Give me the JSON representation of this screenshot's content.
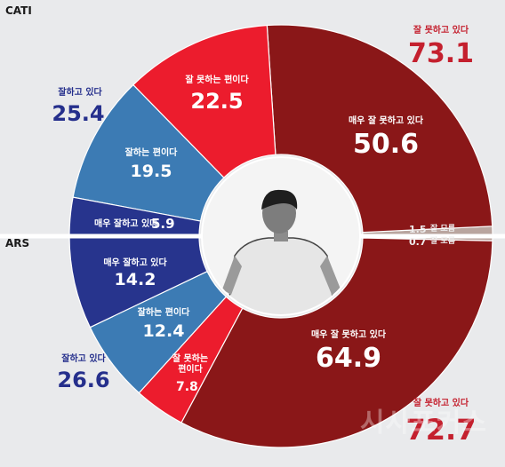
{
  "chart_data": [
    {
      "type": "pie",
      "variant": "half-donut-top",
      "title": "CATI",
      "groups": [
        {
          "label": "잘 못하고 있다",
          "value": 73.1,
          "color": "#c4202e"
        },
        {
          "label": "잘하고 있다",
          "value": 25.4,
          "color": "#252f8c"
        }
      ],
      "slices": [
        {
          "label": "매우 잘 못하고 있다",
          "value": 50.6,
          "color": "#8a1718"
        },
        {
          "label": "잘 못하는 편이다",
          "value": 22.5,
          "color": "#ec1c2d"
        },
        {
          "label": "잘하는 편이다",
          "value": 19.5,
          "color": "#3c7bb4"
        },
        {
          "label": "매우 잘하고 있다",
          "value": 5.9,
          "color": "#27348d"
        },
        {
          "label": "잘 모름",
          "value": 1.5,
          "color": "#b9a59f"
        }
      ]
    },
    {
      "type": "pie",
      "variant": "half-donut-bottom",
      "title": "ARS",
      "groups": [
        {
          "label": "잘 못하고 있다",
          "value": 72.7,
          "color": "#c4202e"
        },
        {
          "label": "잘하고 있다",
          "value": 26.6,
          "color": "#252f8c"
        }
      ],
      "slices": [
        {
          "label": "매우 잘 못하고 있다",
          "value": 64.9,
          "color": "#8a1718"
        },
        {
          "label": "잘 못하는 편이다",
          "value": 7.8,
          "color": "#ec1c2d"
        },
        {
          "label": "잘하는 편이다",
          "value": 12.4,
          "color": "#3c7bb4"
        },
        {
          "label": "매우 잘하고 있다",
          "value": 14.2,
          "color": "#27348d"
        },
        {
          "label": "잘 모름",
          "value": 0.7,
          "color": "#b9a59f"
        }
      ]
    }
  ],
  "watermark": "시사포커스",
  "center_image": "person-photo"
}
